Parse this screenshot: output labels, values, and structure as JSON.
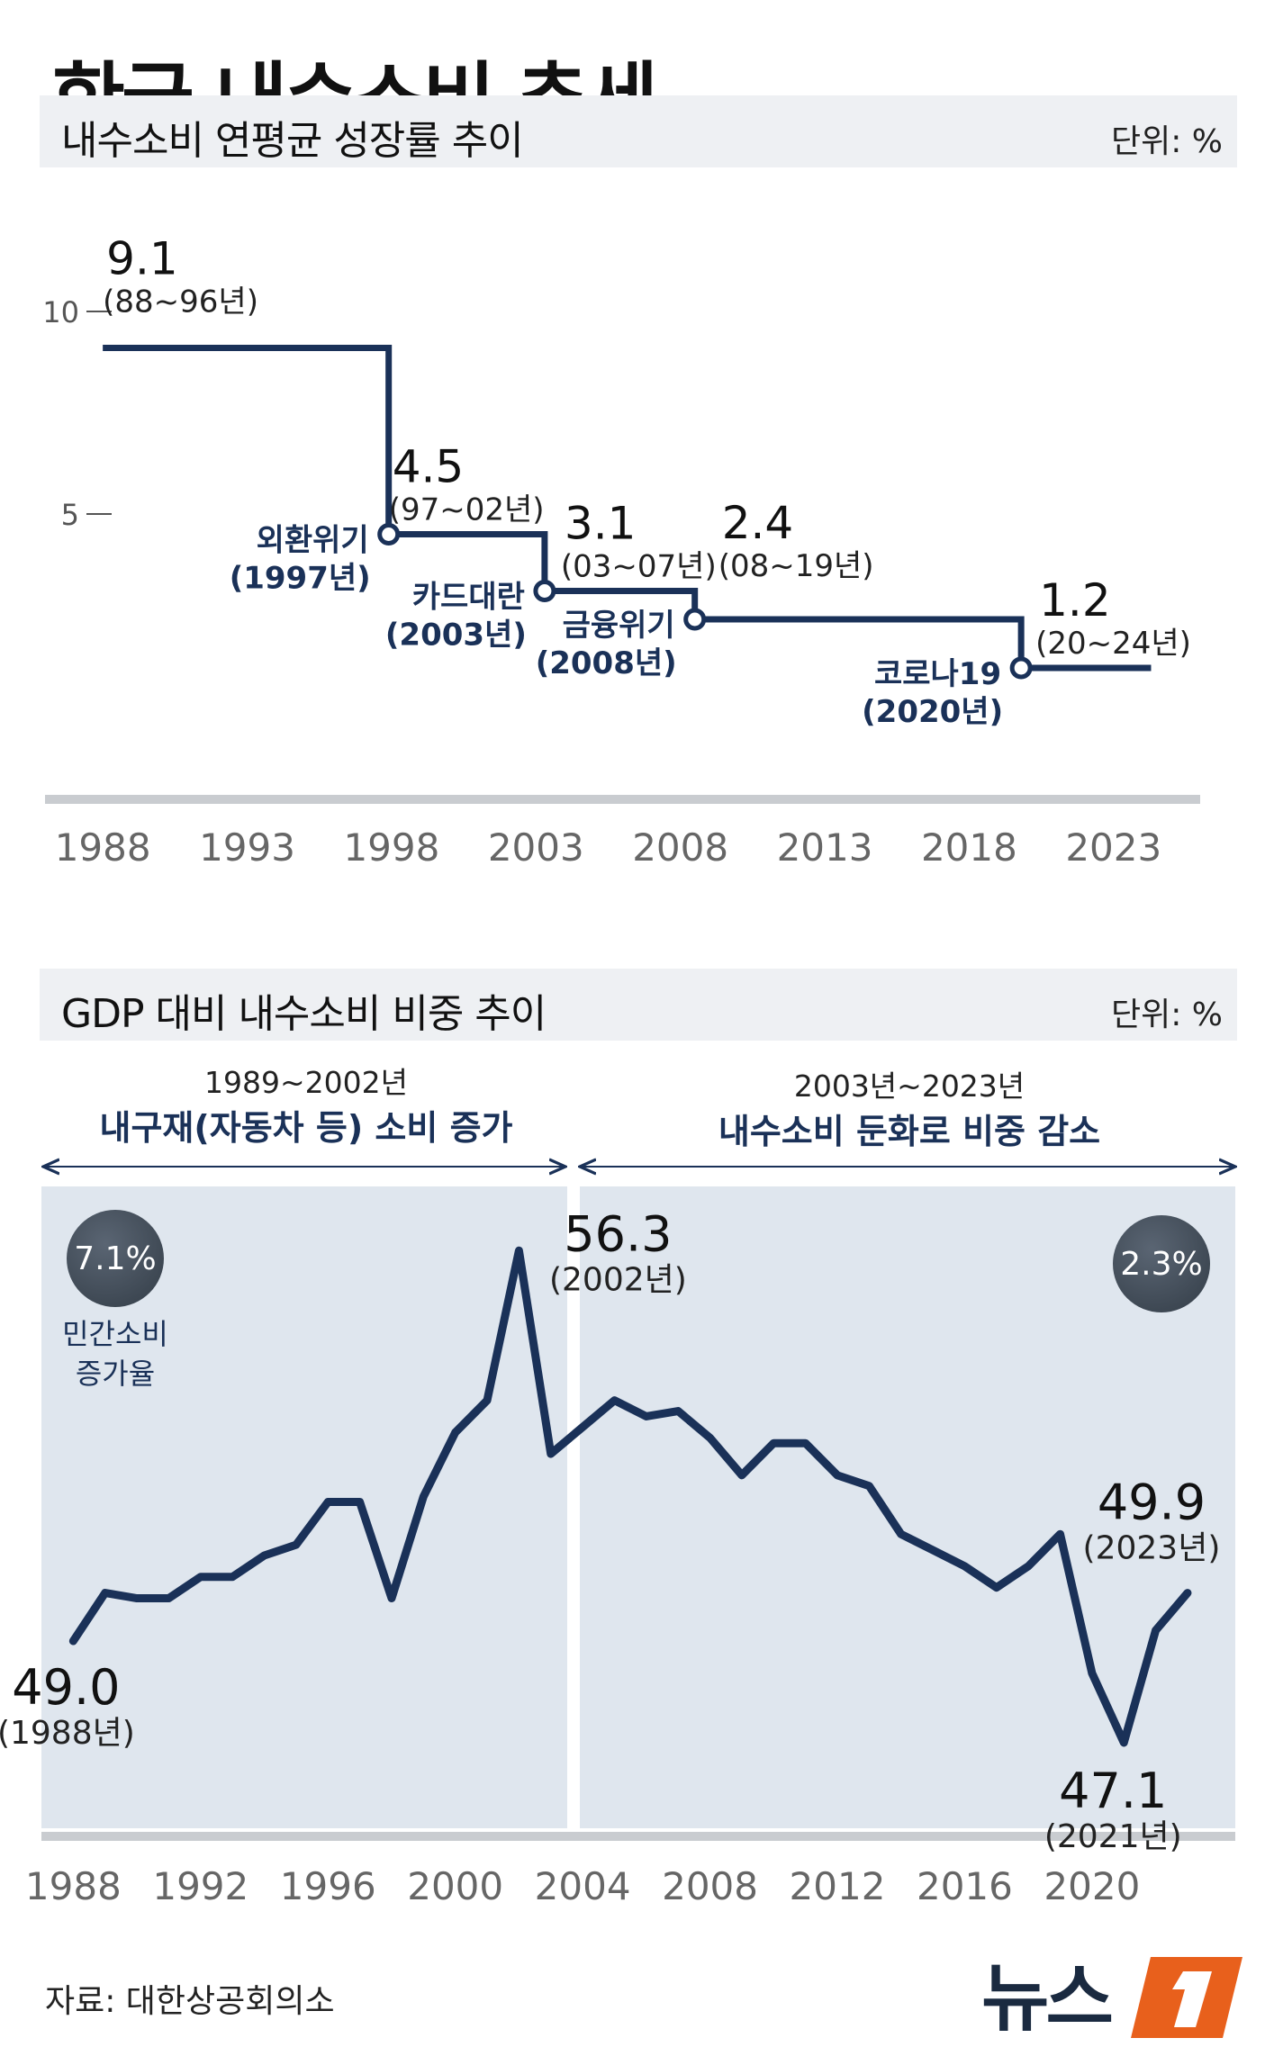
{
  "title": "한국 내수소비 추세",
  "colors": {
    "line": "#1a3158",
    "panel": "#dfe6ee",
    "circle": "#46505c",
    "axis": "#c9ccd0",
    "bar": "#eef0f3"
  },
  "section1": {
    "title": "내수소비 연평균 성장률 추이",
    "unit": "단위: %"
  },
  "section2": {
    "title": "GDP 대비 내수소비 비중 추이",
    "unit": "단위: %",
    "period_left": {
      "years": "1989~2002년",
      "desc": "내구재(자동차 등) 소비 증가"
    },
    "period_right": {
      "years": "2003년~2023년",
      "desc": "내수소비 둔화로 비중 감소"
    },
    "badge_left": "7.1%",
    "badge_right": "2.3%",
    "badge_caption_line1": "민간소비",
    "badge_caption_line2": "증가율"
  },
  "source": "자료: 대한상공회의소",
  "logo_text": "뉴스",
  "logo_mark_icon": "news1-logo-icon",
  "chart_data": [
    {
      "type": "step",
      "title": "내수소비 연평균 성장률 추이",
      "unit": "%",
      "xlim": [
        1986,
        2026
      ],
      "ylim": [
        0,
        12
      ],
      "y_ticks": [
        5,
        10
      ],
      "x_ticks": [
        1988,
        1993,
        1998,
        2003,
        2008,
        2013,
        2018,
        2023
      ],
      "segments": [
        {
          "start": 1988,
          "end": 1997.9,
          "value": 9.1,
          "label": "9.1",
          "period": "(88~96년)"
        },
        {
          "start": 1997.9,
          "end": 2003.3,
          "value": 4.5,
          "label": "4.5",
          "period": "(97~02년)"
        },
        {
          "start": 2003.3,
          "end": 2008.5,
          "value": 3.1,
          "label": "3.1",
          "period": "(03~07년)"
        },
        {
          "start": 2008.5,
          "end": 2019.8,
          "value": 2.4,
          "label": "2.4",
          "period": "(08~19년)"
        },
        {
          "start": 2019.8,
          "end": 2024.3,
          "value": 1.2,
          "label": "1.2",
          "period": "(20~24년)"
        }
      ],
      "events": [
        {
          "x": 1997.9,
          "y": 4.5,
          "name": "외환위기",
          "year": "(1997년)"
        },
        {
          "x": 2003.3,
          "y": 3.1,
          "name": "카드대란",
          "year": "(2003년)"
        },
        {
          "x": 2008.5,
          "y": 2.4,
          "name": "금융위기",
          "year": "(2008년)"
        },
        {
          "x": 2019.8,
          "y": 1.2,
          "name": "코로나19",
          "year": "(2020년)"
        }
      ]
    },
    {
      "type": "line",
      "title": "GDP 대비 내수소비 비중 추이",
      "unit": "%",
      "xlim": [
        1987,
        2024.5
      ],
      "ylim": [
        45.5,
        57.5
      ],
      "x_ticks": [
        1988,
        1992,
        1996,
        2000,
        2004,
        2008,
        2012,
        2016,
        2020
      ],
      "x": [
        1988,
        1989,
        1990,
        1991,
        1992,
        1993,
        1994,
        1995,
        1996,
        1997,
        1998,
        1999,
        2000,
        2001,
        2002,
        2003,
        2004,
        2005,
        2006,
        2007,
        2008,
        2009,
        2010,
        2011,
        2012,
        2013,
        2014,
        2015,
        2016,
        2017,
        2018,
        2019,
        2020,
        2021,
        2022,
        2023
      ],
      "values": [
        49.0,
        49.9,
        49.8,
        49.8,
        50.2,
        50.2,
        50.6,
        50.8,
        51.6,
        51.6,
        49.8,
        51.7,
        52.9,
        53.5,
        56.3,
        52.5,
        53.0,
        53.5,
        53.2,
        53.3,
        52.8,
        52.1,
        52.7,
        52.7,
        52.1,
        51.9,
        51.0,
        50.7,
        50.4,
        50.0,
        50.4,
        51.0,
        48.4,
        47.1,
        49.2,
        49.9
      ],
      "annotations": [
        {
          "x": 1988,
          "value": "49.0",
          "label": "(1988년)"
        },
        {
          "x": 2002,
          "value": "56.3",
          "label": "(2002년)"
        },
        {
          "x": 2021,
          "value": "47.1",
          "label": "(2021년)"
        },
        {
          "x": 2023,
          "value": "49.9",
          "label": "(2023년)"
        }
      ]
    }
  ]
}
